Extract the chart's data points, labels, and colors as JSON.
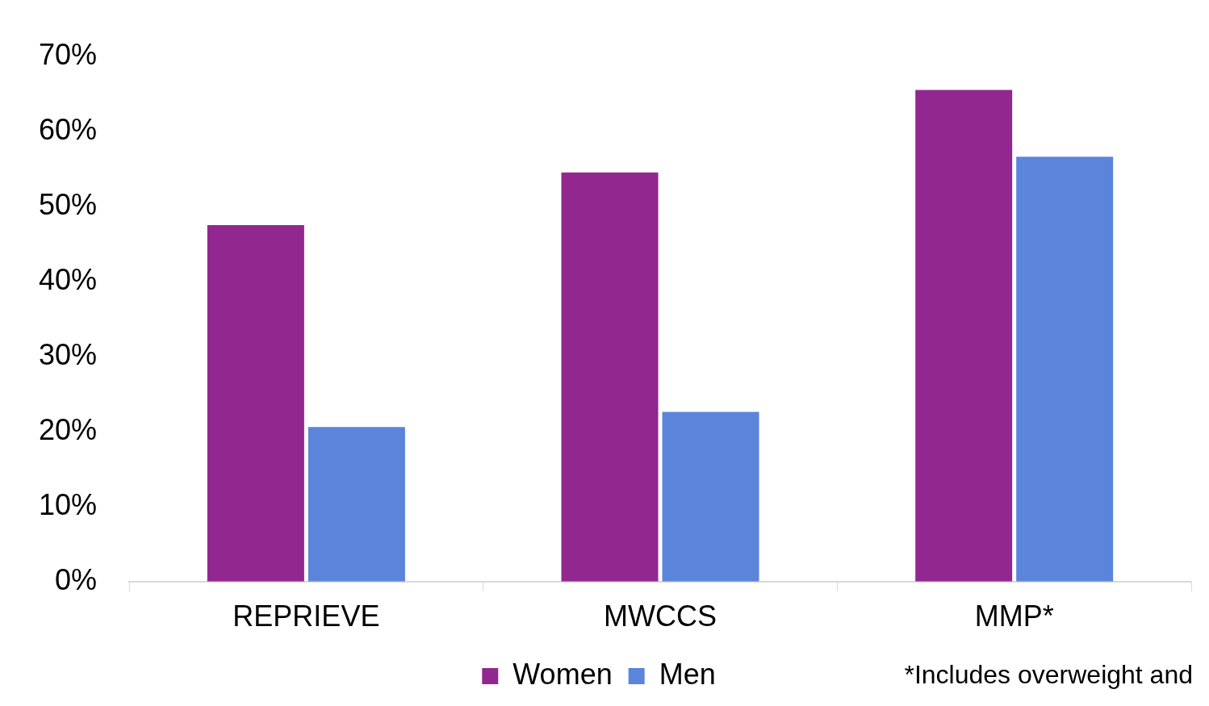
{
  "chart_data": {
    "type": "bar",
    "categories": [
      "REPRIEVE",
      "MWCCS",
      "MMP*"
    ],
    "series": [
      {
        "name": "Women",
        "color": "#92278f",
        "values": [
          47.5,
          54.5,
          65.5
        ]
      },
      {
        "name": "Men",
        "color": "#5b84db",
        "values": [
          20.6,
          22.6,
          56.6
        ]
      }
    ],
    "ylim": [
      0,
      70
    ],
    "yticks": [
      {
        "value": 0,
        "label": "0%"
      },
      {
        "value": 10,
        "label": "10%"
      },
      {
        "value": 20,
        "label": "20%"
      },
      {
        "value": 30,
        "label": "30%"
      },
      {
        "value": 40,
        "label": "40%"
      },
      {
        "value": 50,
        "label": "50%"
      },
      {
        "value": 60,
        "label": "60%"
      },
      {
        "value": 70,
        "label": "70%"
      }
    ],
    "grid": false,
    "legend": "bottom",
    "annotations": [
      "*Includes overweight and"
    ]
  }
}
